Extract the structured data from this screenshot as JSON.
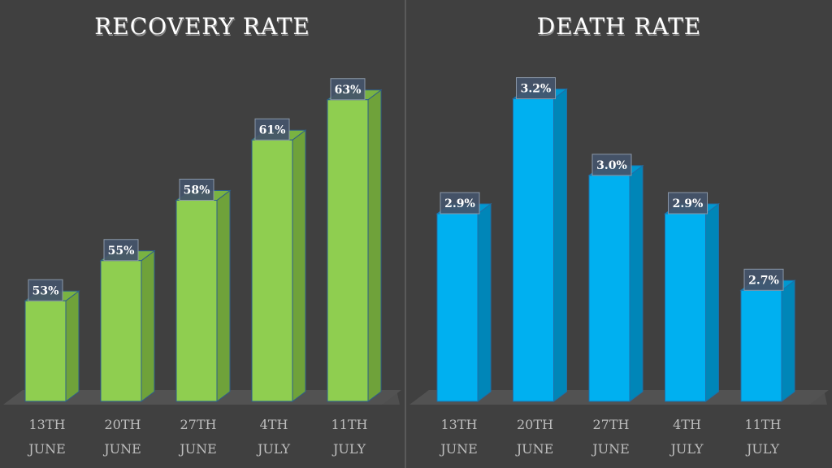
{
  "chart_data": [
    {
      "type": "bar",
      "title": "RECOVERY RATE",
      "categories": [
        [
          "13TH",
          "JUNE"
        ],
        [
          "20TH",
          "JUNE"
        ],
        [
          "27TH",
          "JUNE"
        ],
        [
          "4TH",
          "JULY"
        ],
        [
          "11TH",
          "JULY"
        ]
      ],
      "values": [
        53,
        55,
        58,
        61,
        63
      ],
      "data_labels": [
        "53%",
        "55%",
        "58%",
        "61%",
        "63%"
      ],
      "ylim": [
        48,
        64
      ],
      "xlabel": "",
      "ylabel": "",
      "grid": false,
      "colors": {
        "front": "#8fce50",
        "side": "#6fa23a",
        "top": "#79b342",
        "edge": "#2e5f8a"
      }
    },
    {
      "type": "bar",
      "title": "DEATH RATE",
      "categories": [
        [
          "13TH",
          "JUNE"
        ],
        [
          "20TH",
          "JUNE"
        ],
        [
          "27TH",
          "JUNE"
        ],
        [
          "4TH",
          "JULY"
        ],
        [
          "11TH",
          "JULY"
        ]
      ],
      "values": [
        2.9,
        3.2,
        3.0,
        2.9,
        2.7
      ],
      "data_labels": [
        "2.9%",
        "3.2%",
        "3.0%",
        "2.9%",
        "2.7%"
      ],
      "ylim": [
        2.41,
        3.25
      ],
      "xlabel": "",
      "ylabel": "",
      "grid": false,
      "colors": {
        "front": "#00b0f0",
        "side": "#0086b8",
        "top": "#0098d0",
        "edge": "#1f6fa8"
      }
    }
  ]
}
